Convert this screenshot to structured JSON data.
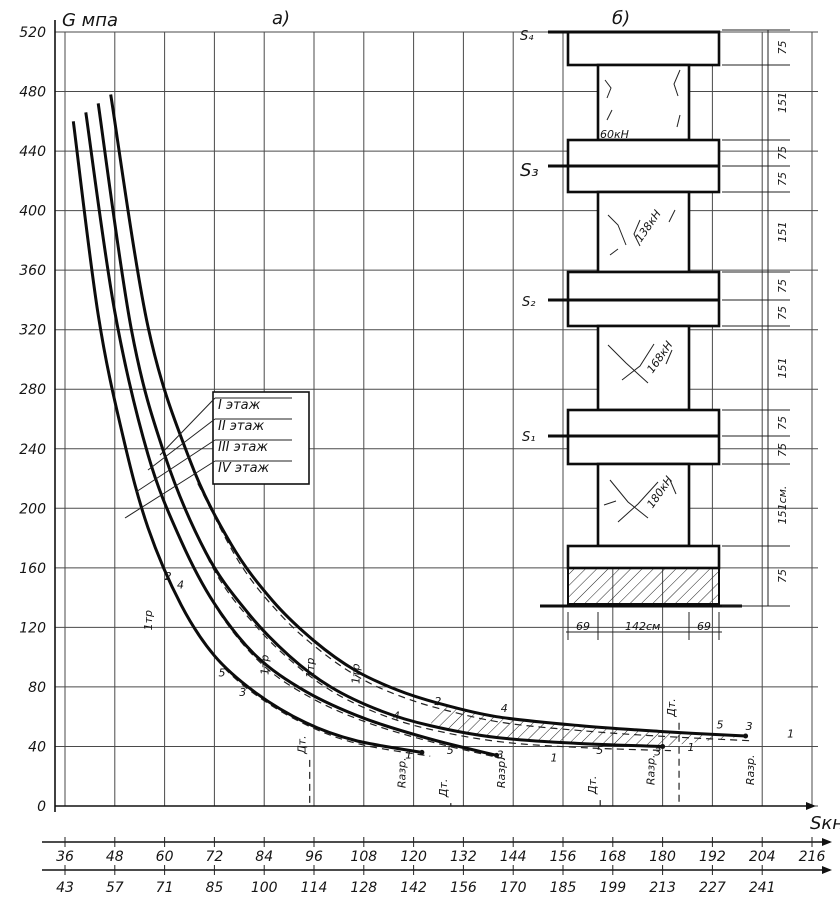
{
  "chart_data": {
    "type": "line",
    "panel_label": "а)",
    "ylabel": "G мпа",
    "xlabel": "Sкн",
    "ylim": [
      0,
      520
    ],
    "y_ticks": [
      0,
      40,
      80,
      120,
      160,
      200,
      240,
      280,
      320,
      360,
      400,
      440,
      480,
      520
    ],
    "x_ticks_row1": [
      "36",
      "48",
      "60",
      "72",
      "84",
      "96",
      "108",
      "120",
      "132",
      "144",
      "156",
      "168",
      "180",
      "192",
      "204",
      "216"
    ],
    "x_ticks_row2": [
      "43",
      "57",
      "71",
      "85",
      "100",
      "114",
      "128",
      "142",
      "156",
      "170",
      "185",
      "199",
      "213",
      "227",
      "241"
    ],
    "legend": {
      "placement": "center",
      "entries": [
        "I этаж",
        "II этаж",
        "III этаж",
        "IV этаж"
      ]
    },
    "series": [
      {
        "name": "I этаж",
        "x": [
          47,
          56,
          66,
          76,
          86,
          96,
          106,
          116,
          126,
          140,
          160,
          180,
          200
        ],
        "y": [
          478,
          322,
          233,
          176,
          138,
          111,
          91,
          78,
          69,
          60,
          54,
          50,
          47
        ]
      },
      {
        "name": "II этаж",
        "x": [
          44,
          52,
          60,
          70,
          80,
          90,
          100,
          112,
          124,
          140,
          160,
          180
        ],
        "y": [
          472,
          320,
          236,
          170,
          130,
          101,
          80,
          64,
          54,
          46,
          42,
          40
        ]
      },
      {
        "name": "III этаж",
        "x": [
          41,
          48,
          56,
          64,
          72,
          82,
          94,
          108,
          124,
          140
        ],
        "y": [
          466,
          332,
          236,
          178,
          136,
          101,
          77,
          59,
          45,
          34
        ]
      },
      {
        "name": "IV этаж",
        "x": [
          38,
          44,
          50,
          56,
          64,
          72,
          82,
          94,
          106,
          122
        ],
        "y": [
          460,
          330,
          248,
          187,
          135,
          101,
          76,
          56,
          44,
          36
        ]
      }
    ],
    "annotations": [
      {
        "text": "1тр",
        "x": 57,
        "y": 118
      },
      {
        "text": "1тр",
        "x": 85,
        "y": 88
      },
      {
        "text": "1тр",
        "x": 96,
        "y": 86
      },
      {
        "text": "1тр",
        "x": 107,
        "y": 82
      },
      {
        "text": "2",
        "x": 60,
        "y": 152
      },
      {
        "text": "4",
        "x": 63,
        "y": 146
      },
      {
        "text": "5",
        "x": 73,
        "y": 87
      },
      {
        "text": "3",
        "x": 78,
        "y": 74
      },
      {
        "text": "4",
        "x": 115,
        "y": 58
      },
      {
        "text": "2",
        "x": 125,
        "y": 68
      },
      {
        "text": "4",
        "x": 141,
        "y": 63
      },
      {
        "text": "5",
        "x": 128,
        "y": 35
      },
      {
        "text": "3",
        "x": 140,
        "y": 32
      },
      {
        "text": "1",
        "x": 118,
        "y": 32
      },
      {
        "text": "1",
        "x": 153,
        "y": 30
      },
      {
        "text": "5",
        "x": 164,
        "y": 35
      },
      {
        "text": "3",
        "x": 178,
        "y": 34
      },
      {
        "text": "1",
        "x": 186,
        "y": 37
      },
      {
        "text": "5",
        "x": 193,
        "y": 52
      },
      {
        "text": "3",
        "x": 200,
        "y": 51
      },
      {
        "text": "1",
        "x": 210,
        "y": 46
      },
      {
        "text": "Дт.",
        "x": 94,
        "y": 35
      },
      {
        "text": "Дт.",
        "x": 128,
        "y": 6
      },
      {
        "text": "Дт.",
        "x": 164,
        "y": 8
      },
      {
        "text": "Дт.",
        "x": 183,
        "y": 60
      },
      {
        "text": "Rазр.",
        "x": 118,
        "y": 12
      },
      {
        "text": "Rазр.",
        "x": 142,
        "y": 12
      },
      {
        "text": "Rазр.",
        "x": 178,
        "y": 14
      },
      {
        "text": "Rазр.",
        "x": 202,
        "y": 14
      }
    ]
  },
  "drawing": {
    "panel_label": "б)",
    "levels": [
      "S₄",
      "S₃",
      "S₂",
      "S₁"
    ],
    "crack_loads": [
      "60кН",
      "138кН",
      "168кН",
      "180кН"
    ],
    "dims_right": [
      "75",
      "151",
      "75",
      "75",
      "151",
      "75",
      "75",
      "151",
      "75",
      "75",
      "151см.",
      "75"
    ],
    "dims_bottom": [
      "69",
      "142см",
      "69"
    ]
  }
}
